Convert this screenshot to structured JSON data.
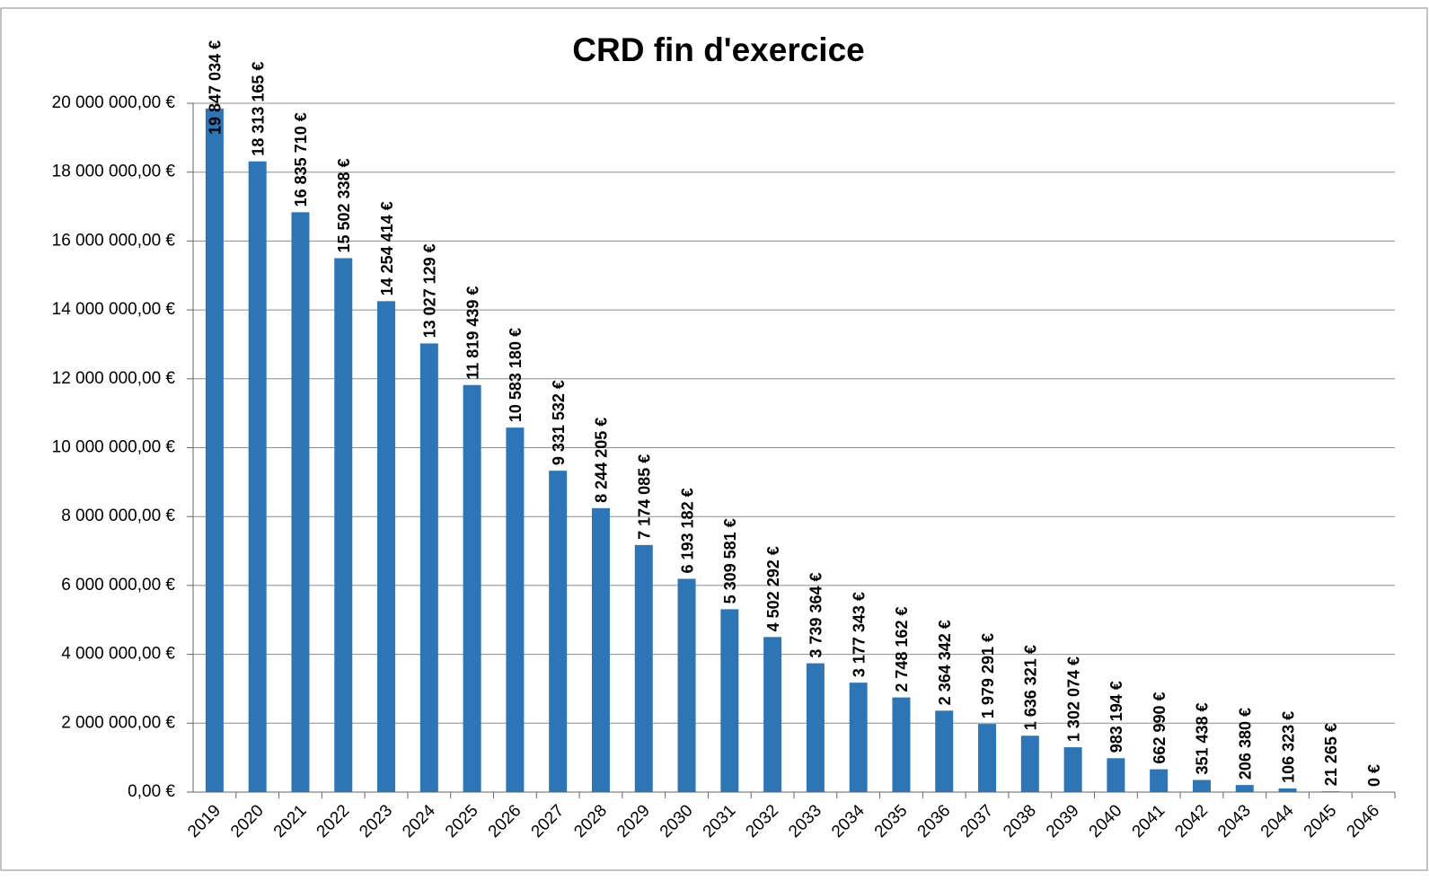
{
  "chart_data": {
    "type": "bar",
    "title": "CRD fin d'exercice",
    "categories": [
      "2019",
      "2020",
      "2021",
      "2022",
      "2023",
      "2024",
      "2025",
      "2026",
      "2027",
      "2028",
      "2029",
      "2030",
      "2031",
      "2032",
      "2033",
      "2034",
      "2035",
      "2036",
      "2037",
      "2038",
      "2039",
      "2040",
      "2041",
      "2042",
      "2043",
      "2044",
      "2045",
      "2046"
    ],
    "values": [
      19847034,
      18313165,
      16835710,
      15502338,
      14254414,
      13027129,
      11819439,
      10583180,
      9331532,
      8244205,
      7174085,
      6193182,
      5309581,
      4502292,
      3739364,
      3177343,
      2748162,
      2364342,
      1979291,
      1636321,
      1302074,
      983194,
      662990,
      351438,
      206380,
      106323,
      21265,
      0
    ],
    "value_labels": [
      "19 847 034 €",
      "18 313 165 €",
      "16 835 710 €",
      "15 502 338 €",
      "14 254 414 €",
      "13 027 129 €",
      "11 819 439 €",
      "10 583 180 €",
      "9 331 532 €",
      "8 244 205 €",
      "7 174 085 €",
      "6 193 182 €",
      "5 309 581 €",
      "4 502 292 €",
      "3 739 364 €",
      "3 177 343 €",
      "2 748 162 €",
      "2 364 342 €",
      "1 979 291 €",
      "1 636 321 €",
      "1 302 074 €",
      "983 194 €",
      "662 990 €",
      "351 438 €",
      "206 380 €",
      "106 323 €",
      "21 265 €",
      "0 €"
    ],
    "color": "#2e75b6",
    "ylim": [
      0,
      20000000
    ],
    "yticks": [
      {
        "value": 0,
        "label": "0,00 €"
      },
      {
        "value": 2000000,
        "label": "2 000 000,00 €"
      },
      {
        "value": 4000000,
        "label": "4 000 000,00 €"
      },
      {
        "value": 6000000,
        "label": "6 000 000,00 €"
      },
      {
        "value": 8000000,
        "label": "8 000 000,00 €"
      },
      {
        "value": 10000000,
        "label": "10 000 000,00 €"
      },
      {
        "value": 12000000,
        "label": "12 000 000,00 €"
      },
      {
        "value": 14000000,
        "label": "14 000 000,00 €"
      },
      {
        "value": 16000000,
        "label": "16 000 000,00 €"
      },
      {
        "value": 18000000,
        "label": "18 000 000,00 €"
      },
      {
        "value": 20000000,
        "label": "20 000 000,00 €"
      }
    ],
    "grid": true
  }
}
